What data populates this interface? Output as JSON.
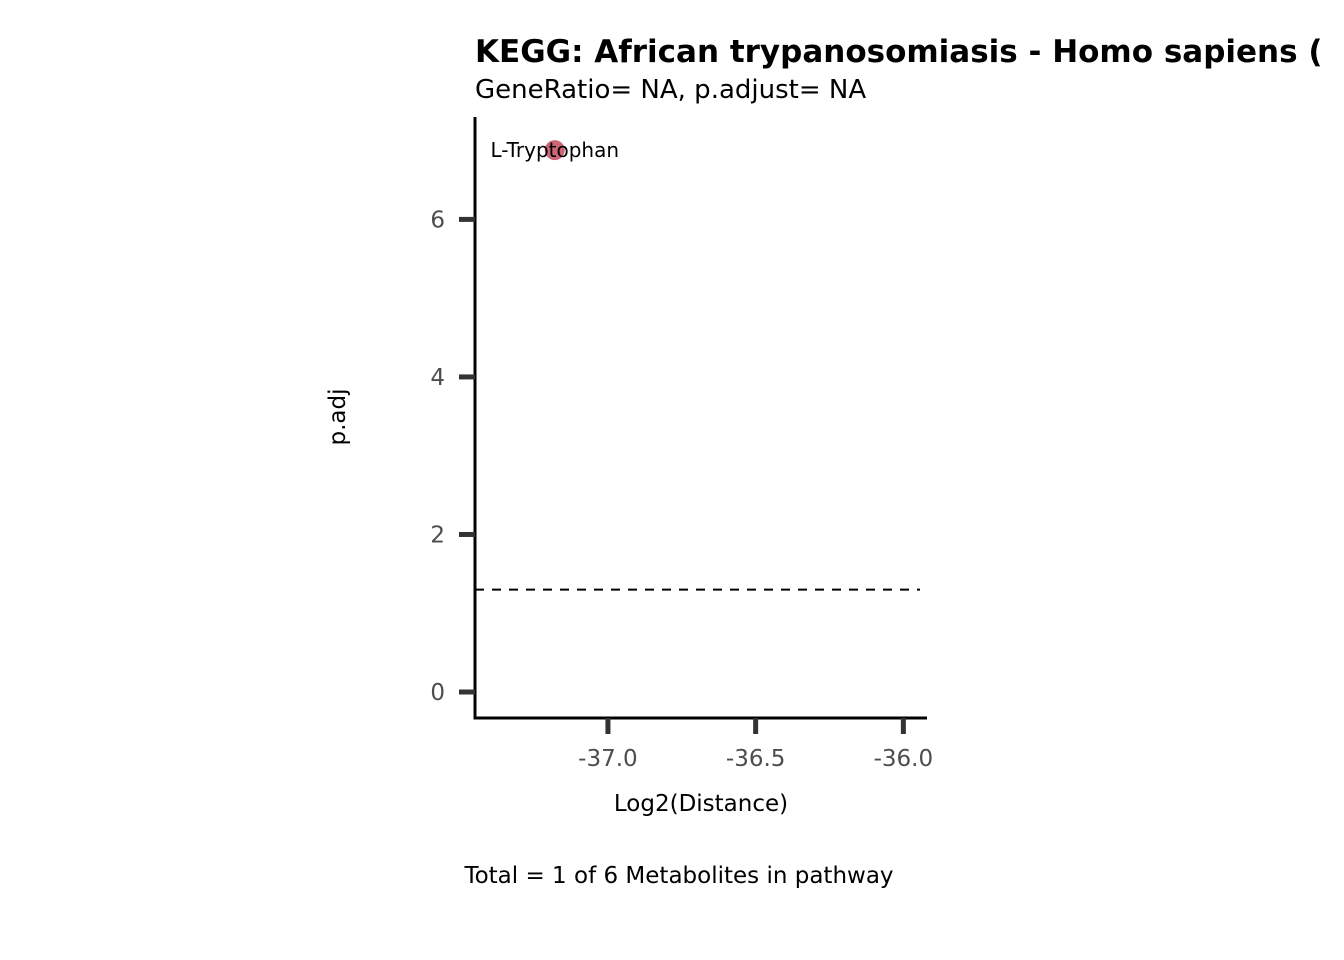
{
  "chart_data": {
    "type": "scatter",
    "title": "KEGG: African trypanosomiasis - Homo sapiens (",
    "subtitle": "GeneRatio= NA, p.adjust= NA",
    "xlabel": "Log2(Distance)",
    "ylabel": "p.adj",
    "caption": "Total = 1 of 6 Metabolites in pathway",
    "xlim": [
      -37.45,
      -35.92
    ],
    "ylim": [
      -0.33,
      7.3
    ],
    "x_ticks": [
      -37.0,
      -36.5,
      -36.0
    ],
    "x_tick_labels": [
      "-37.0",
      "-36.5",
      "-36.0"
    ],
    "y_ticks": [
      0,
      2,
      4,
      6
    ],
    "y_tick_labels": [
      "0",
      "2",
      "4",
      "6"
    ],
    "reference_line": {
      "y": 1.3,
      "style": "dashed"
    },
    "grid": false,
    "points": [
      {
        "label": "L-Tryptophan",
        "x": -37.18,
        "y": 6.88
      }
    ],
    "colors": {
      "point": "#cc6677",
      "axis": "#000000",
      "tick": "#333333",
      "tick_label": "#4d4d4d",
      "reference_line": "#000000"
    }
  }
}
